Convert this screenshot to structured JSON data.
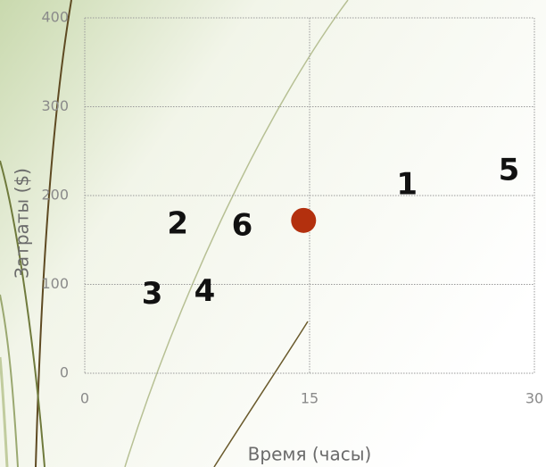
{
  "chart_data": {
    "type": "scatter",
    "x_label": "Время (часы)",
    "y_label": "Затраты ($)",
    "xlim": [
      0,
      30
    ],
    "xticks": [
      0,
      15,
      30
    ],
    "ylim": [
      0,
      400
    ],
    "yticks": [
      0,
      100,
      200,
      300,
      400
    ],
    "grid": true,
    "series": [
      {
        "color": "#111111",
        "labels": [
          "1",
          "2",
          "3",
          "4",
          "5",
          "6"
        ],
        "x": [
          21.5,
          6.2,
          4.5,
          8.0,
          28.3,
          10.5
        ],
        "values": [
          211,
          167,
          88,
          91,
          227,
          165
        ]
      },
      {
        "color": "#b3300e",
        "x": [
          14.6
        ],
        "values": [
          172
        ]
      }
    ]
  }
}
